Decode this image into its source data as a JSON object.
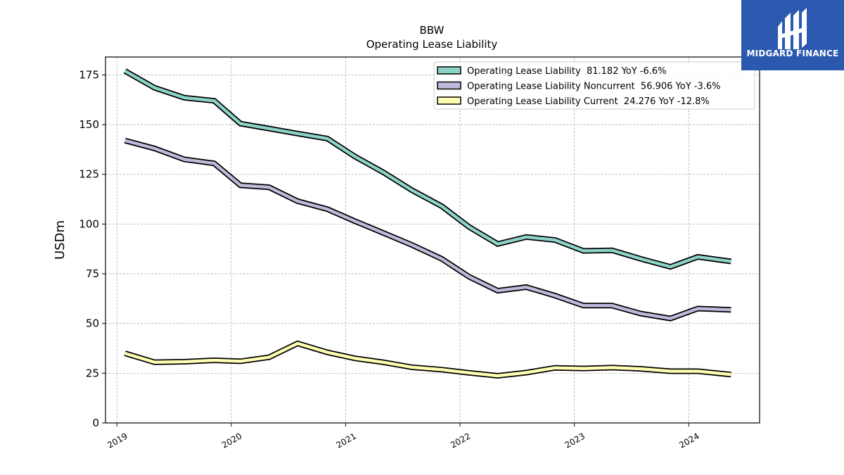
{
  "chart_data": {
    "type": "line",
    "title": "BBW",
    "subtitle": "Operating Lease Liability",
    "ylabel": "USDm",
    "xlabel": "",
    "ylim": [
      0,
      184
    ],
    "xlim": [
      2018.9,
      2024.62
    ],
    "yticks": [
      0,
      25,
      50,
      75,
      100,
      125,
      150,
      175
    ],
    "xticks": [
      2019,
      2020,
      2021,
      2022,
      2023,
      2024
    ],
    "xtick_labels": [
      "2019",
      "2020",
      "2021",
      "2022",
      "2023",
      "2024"
    ],
    "grid": true,
    "legend_position": "top-right",
    "x": [
      2019.07,
      2019.33,
      2019.59,
      2019.85,
      2020.08,
      2020.33,
      2020.58,
      2020.84,
      2021.08,
      2021.33,
      2021.58,
      2021.84,
      2022.08,
      2022.33,
      2022.58,
      2022.83,
      2023.08,
      2023.33,
      2023.58,
      2023.84,
      2024.08,
      2024.37
    ],
    "series": [
      {
        "name": "Operating Lease Liability  81.182 YoY -6.6%",
        "color": "#8dd3c7",
        "values": [
          177,
          168.5,
          163.5,
          162,
          150.5,
          148,
          145.5,
          143,
          134,
          126,
          117,
          109,
          98.5,
          90,
          93.5,
          92,
          86.5,
          86.8,
          82.5,
          78.5,
          83.5,
          81.2
        ]
      },
      {
        "name": "Operating Lease Liability Noncurrent  56.906 YoY -3.6%",
        "color": "#bebada",
        "values": [
          142,
          138,
          132.5,
          130.5,
          119.5,
          118.5,
          111.5,
          107.5,
          101.5,
          95.5,
          89.5,
          82.5,
          73.5,
          66.5,
          68.3,
          64,
          59,
          59,
          55,
          52.5,
          57.5,
          56.9
        ]
      },
      {
        "name": "Operating Lease Liability Current  24.276 YoY -12.8%",
        "color": "#ffffb3",
        "values": [
          35,
          30.5,
          30.8,
          31.5,
          31,
          33,
          40,
          35.5,
          32.5,
          30.5,
          28,
          26.8,
          25.2,
          23.7,
          25.3,
          27.7,
          27.4,
          27.8,
          27.2,
          26,
          26,
          24.3
        ]
      }
    ]
  },
  "brand": {
    "name": "MIDGARD FINANCE",
    "background": "#2b59b0",
    "icon": "midgard-logo-icon"
  }
}
